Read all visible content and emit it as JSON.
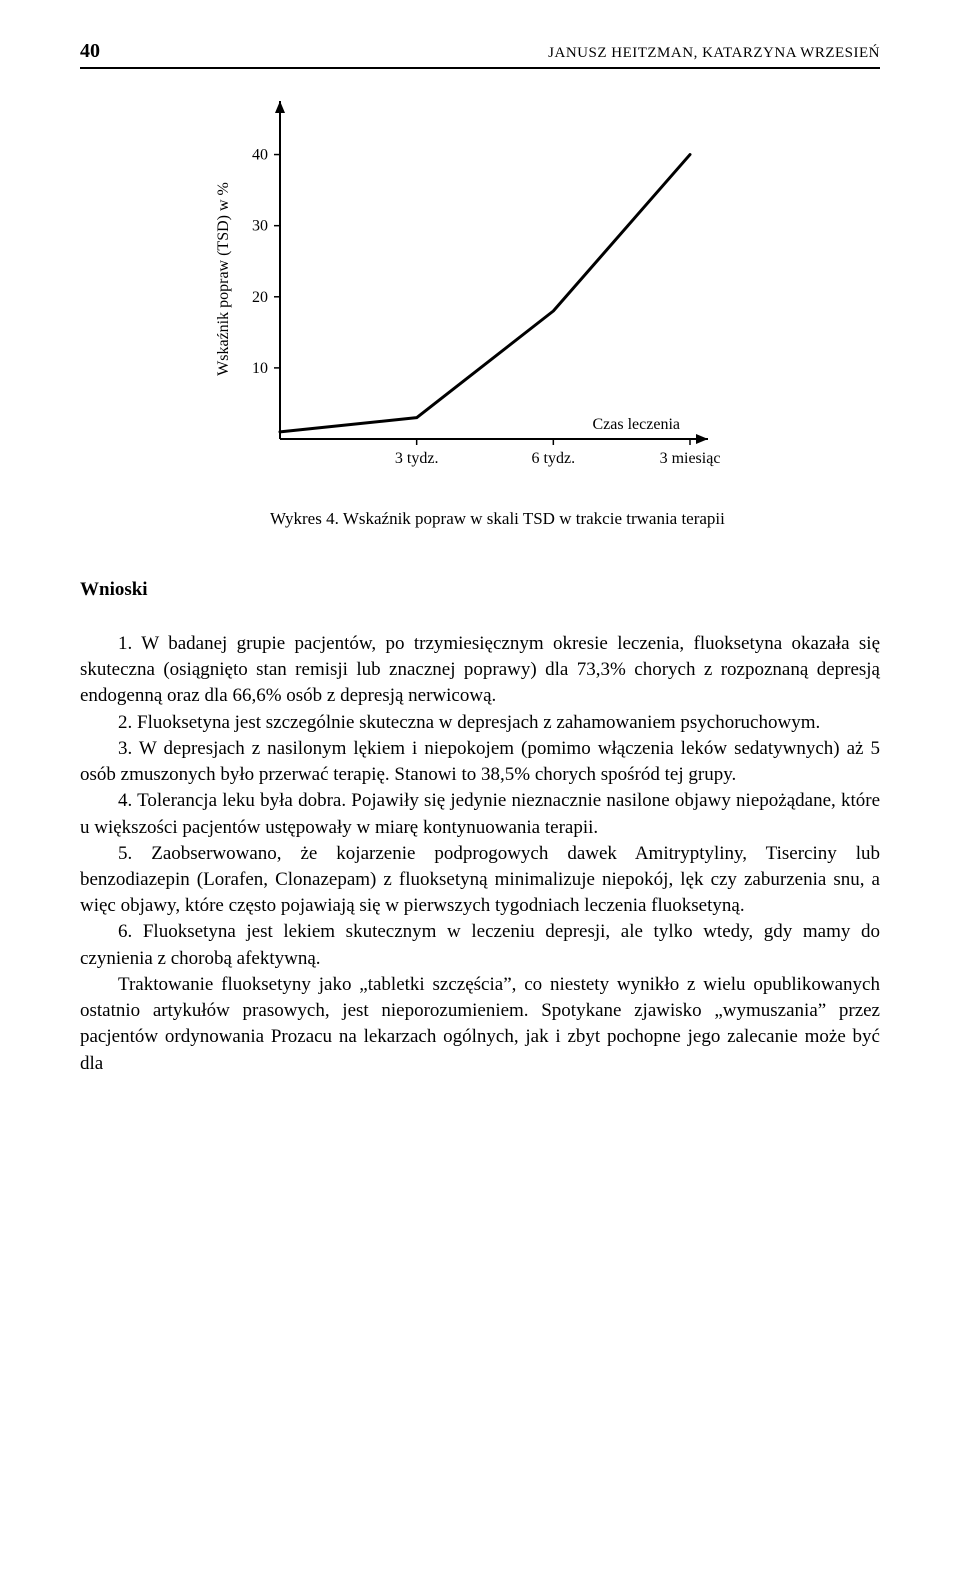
{
  "header": {
    "page_number": "40",
    "running_head": "JANUSZ HEITZMAN, KATARZYNA WRZESIEŃ"
  },
  "chart": {
    "type": "line",
    "y_label": "Wskaźnik popraw (TSD) w %",
    "x_label_right": "Czas leczenia",
    "x_ticks": [
      "3 tydz.",
      "6 tydz.",
      "3 miesiąc"
    ],
    "y_ticks": [
      10,
      20,
      30,
      40
    ],
    "ylim": [
      0,
      45
    ],
    "data_points": [
      {
        "x": 0,
        "y": 1
      },
      {
        "x": 1,
        "y": 3
      },
      {
        "x": 2,
        "y": 18
      },
      {
        "x": 3,
        "y": 40
      }
    ],
    "line_color": "#000000",
    "line_width": 3,
    "axis_color": "#000000",
    "axis_width": 2,
    "tick_fontsize": 16,
    "label_fontsize": 16,
    "background_color": "#ffffff"
  },
  "caption": {
    "prefix": "Wykres 4.",
    "text": "Wskaźnik popraw w skali TSD w trakcie trwania terapii"
  },
  "section_title": "Wnioski",
  "paragraphs": [
    "1. W badanej grupie pacjentów, po trzymiesięcznym okresie leczenia, fluoksetyna okazała się skuteczna (osiągnięto stan remisji lub znacznej poprawy) dla 73,3% chorych z rozpoznaną depresją endogenną oraz dla 66,6% osób z depresją nerwicową.",
    "2. Fluoksetyna jest szczególnie skuteczna w depresjach z zahamowaniem psychoruchowym.",
    "3. W depresjach z nasilonym lękiem i niepokojem (pomimo włączenia leków sedatywnych) aż 5 osób zmuszonych było przerwać terapię. Stanowi to 38,5% chorych spośród tej grupy.",
    "4. Tolerancja leku była dobra. Pojawiły się jedynie nieznacznie nasilone objawy niepożądane, które u większości pacjentów ustępowały w miarę kontynuowania terapii.",
    "5. Zaobserwowano, że kojarzenie podprogowych dawek Amitryptyliny, Tiserciny lub benzodiazepin (Lorafen, Clonazepam) z fluoksetyną minimalizuje niepokój, lęk czy zaburzenia snu, a więc objawy, które często pojawiają się w pierwszych tygodniach leczenia fluoksetyną.",
    "6. Fluoksetyna jest lekiem skutecznym w leczeniu depresji, ale tylko wtedy, gdy mamy do czynienia z chorobą afektywną.",
    "Traktowanie fluoksetyny jako „tabletki szczęścia”, co niestety wynikło z wielu opublikowanych ostatnio artykułów prasowych, jest nieporozumieniem. Spotykane zjawisko „wymuszania” przez pacjentów ordynowania Prozacu na lekarzach ogólnych, jak i zbyt pochopne jego zalecanie może być dla"
  ]
}
